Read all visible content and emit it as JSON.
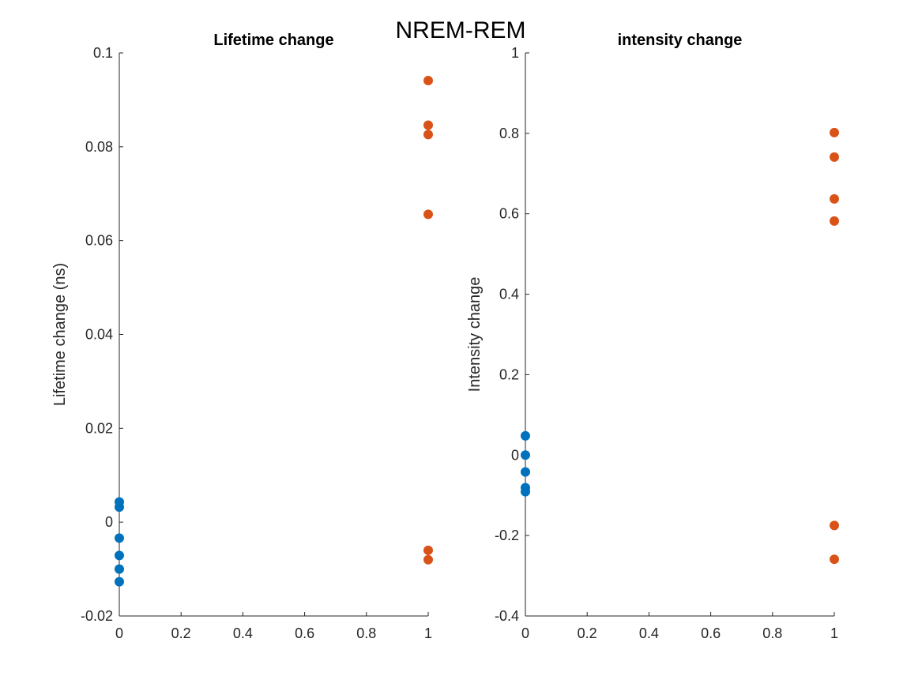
{
  "figure_title": "NREM-REM",
  "colors": {
    "group0": "#0072BD",
    "group1": "#D95319",
    "axis": "#262626"
  },
  "chart_data": [
    {
      "type": "scatter",
      "title": "Lifetime change",
      "xlabel": "",
      "ylabel": "Lifetime change (ns)",
      "xlim": [
        0,
        1
      ],
      "ylim": [
        -0.02,
        0.1
      ],
      "xticks": [
        0,
        0.2,
        0.4,
        0.6,
        0.8,
        1
      ],
      "xtick_labels": [
        "0",
        "0.2",
        "0.4",
        "0.6",
        "0.8",
        "1"
      ],
      "yticks": [
        -0.02,
        0,
        0.02,
        0.04,
        0.06,
        0.08,
        0.1
      ],
      "ytick_labels": [
        "-0.02",
        "0",
        "0.02",
        "0.04",
        "0.06",
        "0.08",
        "0.1"
      ],
      "grid": false,
      "series": [
        {
          "x": [
            0,
            0,
            0,
            0,
            0,
            0
          ],
          "y": [
            0.0043,
            0.0032,
            -0.0034,
            -0.0071,
            -0.01,
            -0.0127
          ]
        },
        {
          "x": [
            1,
            1,
            1,
            1,
            1,
            1
          ],
          "y": [
            0.0941,
            0.0846,
            0.0826,
            0.0656,
            -0.006,
            -0.008
          ]
        }
      ]
    },
    {
      "type": "scatter",
      "title": "intensity change",
      "xlabel": "",
      "ylabel": "Intensity change",
      "xlim": [
        0,
        1
      ],
      "ylim": [
        -0.4,
        1
      ],
      "xticks": [
        0,
        0.2,
        0.4,
        0.6,
        0.8,
        1
      ],
      "xtick_labels": [
        "0",
        "0.2",
        "0.4",
        "0.6",
        "0.8",
        "1"
      ],
      "yticks": [
        -0.4,
        -0.2,
        0,
        0.2,
        0.4,
        0.6,
        0.8,
        1
      ],
      "ytick_labels": [
        "-0.4",
        "-0.2",
        "0",
        "0.2",
        "0.4",
        "0.6",
        "0.8",
        "1"
      ],
      "grid": false,
      "series": [
        {
          "x": [
            0,
            0,
            0,
            0,
            0
          ],
          "y": [
            0.048,
            0.0,
            -0.042,
            -0.081,
            -0.091
          ]
        },
        {
          "x": [
            1,
            1,
            1,
            1,
            1,
            1
          ],
          "y": [
            0.802,
            0.741,
            0.637,
            0.582,
            -0.175,
            -0.259
          ]
        }
      ]
    }
  ]
}
